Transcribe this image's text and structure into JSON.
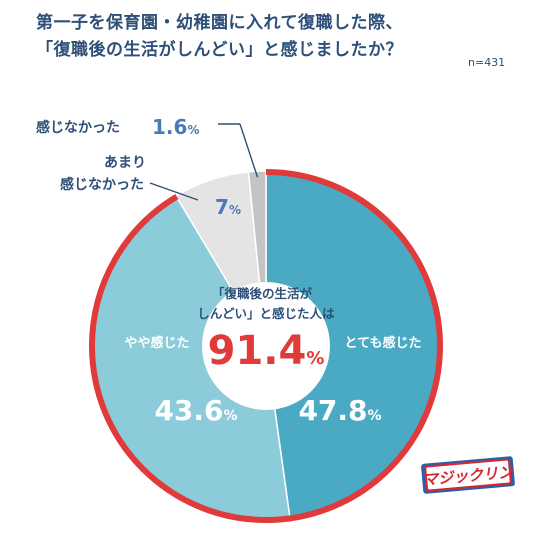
{
  "title": {
    "line1": "第一子を保育園・幼稚園に入れて復職した際、",
    "line2": "「復職後の生活がしんどい」と感じましたか？"
  },
  "sample_size": "n=431",
  "chart_data": {
    "type": "pie",
    "categories": [
      "とても感じた",
      "やや感じた",
      "あまり感じなかった",
      "感じなかった"
    ],
    "values": [
      47.8,
      43.6,
      7,
      1.6
    ],
    "value_labels": [
      "47.8",
      "43.6",
      "7",
      "1.6"
    ],
    "unit": "%",
    "colors": [
      "#4aaac4",
      "#8ccbda",
      "#e4e4e4",
      "#c4c4c4"
    ],
    "highlight_ring_color": "#e03a3a",
    "center_text": {
      "line1": "「復職後の生活が",
      "line2": "しんどい」と感じた人は",
      "value": "91.4",
      "unit": "%"
    },
    "outer_labels": {
      "not_felt": "感じなかった",
      "not_much_line1": "あまり",
      "not_much_line2": "感じなかった"
    }
  },
  "logo": {
    "text": "マジックリン",
    "colors": {
      "primary": "#d7262e",
      "band": "#2c5fa8"
    }
  }
}
